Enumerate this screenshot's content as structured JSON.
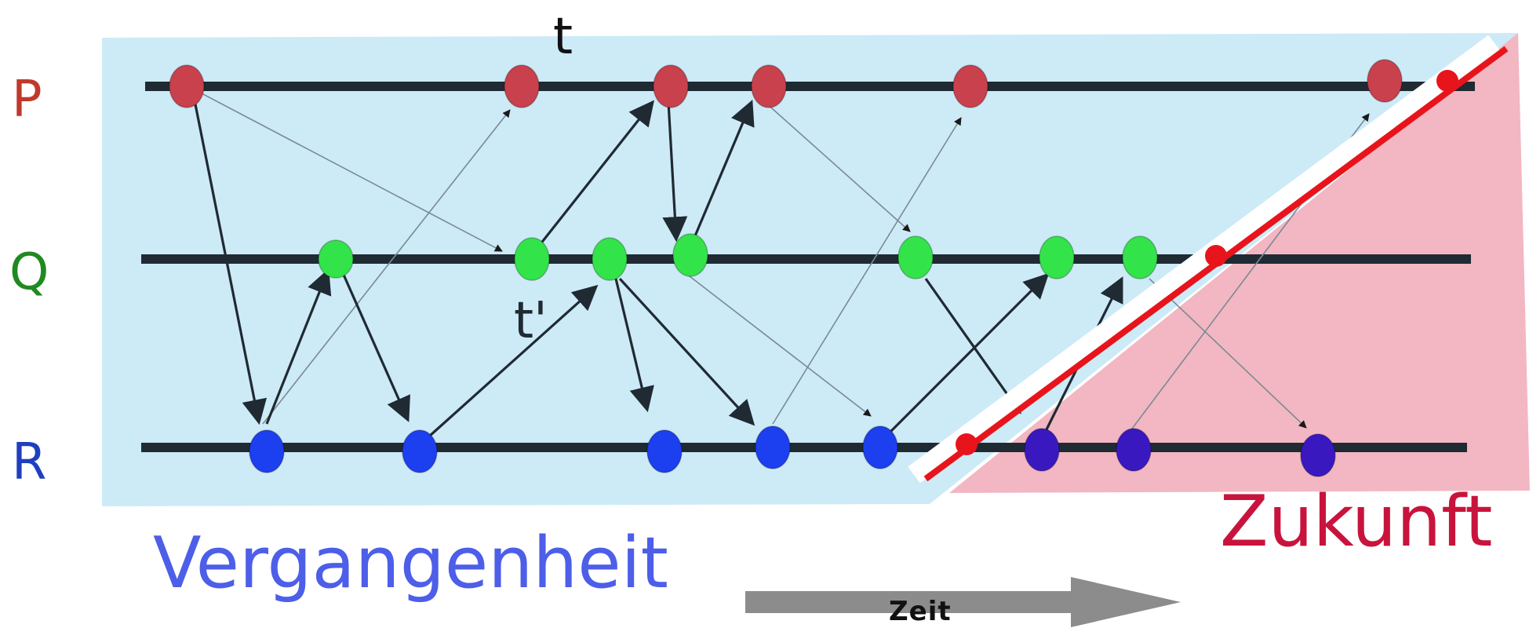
{
  "processes": [
    {
      "id": "P",
      "label": "P",
      "color": "#c0392b"
    },
    {
      "id": "Q",
      "label": "Q",
      "color": "#1f8a1f"
    },
    {
      "id": "R",
      "label": "R",
      "color": "#1f3fbf"
    }
  ],
  "labels": {
    "past": "Vergangenheit",
    "future": "Zukunft",
    "time": "Zeit",
    "t": "t",
    "t_prime": "t'"
  },
  "colors": {
    "past_region": "#cdeaf7",
    "future_region": "#f2b7c2",
    "cut_line": "#e8141c",
    "timeline": "#1f2a33",
    "event_P": "#c8414d",
    "event_Q": "#33e34a",
    "event_R_past": "#1c3ff0",
    "event_R_future": "#3a18c0",
    "past_text": "#4d5ee8",
    "future_text": "#c8143c",
    "time_arrow": "#8c8c8c"
  }
}
